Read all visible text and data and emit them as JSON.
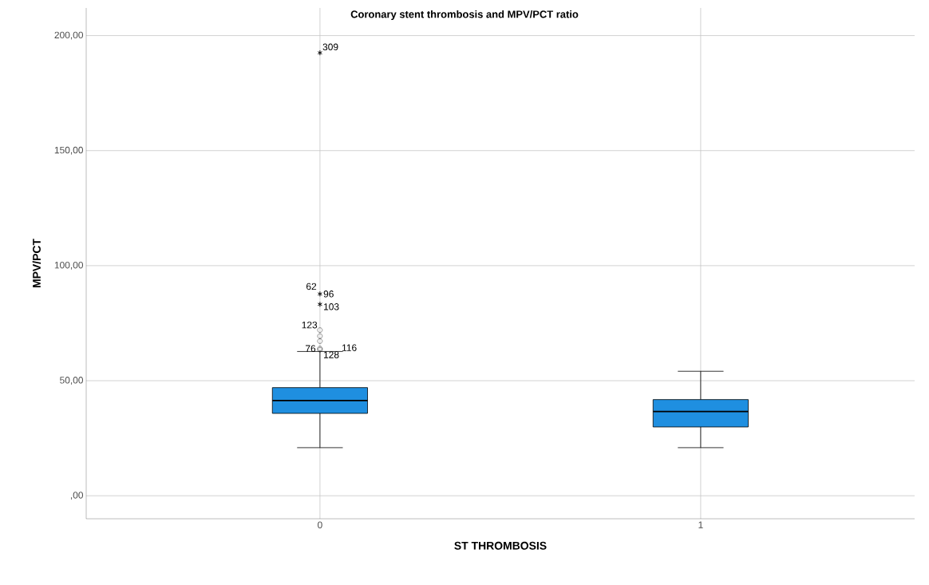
{
  "chart_data": {
    "type": "box",
    "title": "Coronary stent thrombosis and MPV/PCT ratio",
    "xlabel": "ST THROMBOSIS",
    "ylabel": "MPV/PCT",
    "categories": [
      "0",
      "1"
    ],
    "boxes": [
      {
        "low": 20.9,
        "q1": 35.8,
        "median": 41.4,
        "q3": 47.0,
        "high": 62.7,
        "outliers": [
          63.5,
          64.0,
          67.2,
          69.4,
          72.0,
          83.2,
          87.7,
          192.5
        ]
      },
      {
        "low": 20.9,
        "q1": 29.9,
        "median": 36.6,
        "q3": 41.8,
        "high": 54.1
      }
    ],
    "color": "#1f8fe0",
    "ylim": [
      -10,
      212
    ],
    "yticks": [
      {
        "value": 0,
        "label": ",00"
      },
      {
        "value": 50,
        "label": "50,00"
      },
      {
        "value": 100,
        "label": "100,00"
      },
      {
        "value": 150,
        "label": "150,00"
      },
      {
        "value": 200,
        "label": "200,00"
      }
    ],
    "grid": true,
    "annotations": [
      "309",
      "62",
      "96",
      "103",
      "123",
      "76",
      "128",
      "116"
    ]
  }
}
